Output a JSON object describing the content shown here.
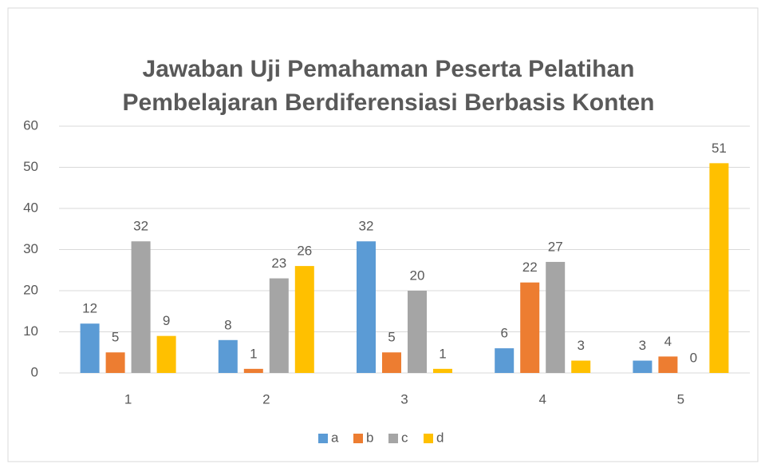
{
  "chart_data": {
    "type": "bar",
    "title": [
      "Jawaban Uji Pemahaman Peserta Pelatihan",
      "Pembelajaran Berdiferensiasi Berbasis Konten"
    ],
    "categories": [
      "1",
      "2",
      "3",
      "4",
      "5"
    ],
    "series": [
      {
        "name": "a",
        "color": "#5b9bd5",
        "values": [
          12,
          8,
          32,
          6,
          3
        ]
      },
      {
        "name": "b",
        "color": "#ed7d31",
        "values": [
          5,
          1,
          5,
          22,
          4
        ]
      },
      {
        "name": "c",
        "color": "#a5a5a5",
        "values": [
          32,
          23,
          20,
          27,
          0
        ]
      },
      {
        "name": "d",
        "color": "#ffc000",
        "values": [
          9,
          26,
          1,
          3,
          51
        ]
      }
    ],
    "ylim": [
      0,
      60
    ],
    "yticks": [
      0,
      10,
      20,
      30,
      40,
      50,
      60
    ],
    "grid": true,
    "legend": "bottom"
  }
}
